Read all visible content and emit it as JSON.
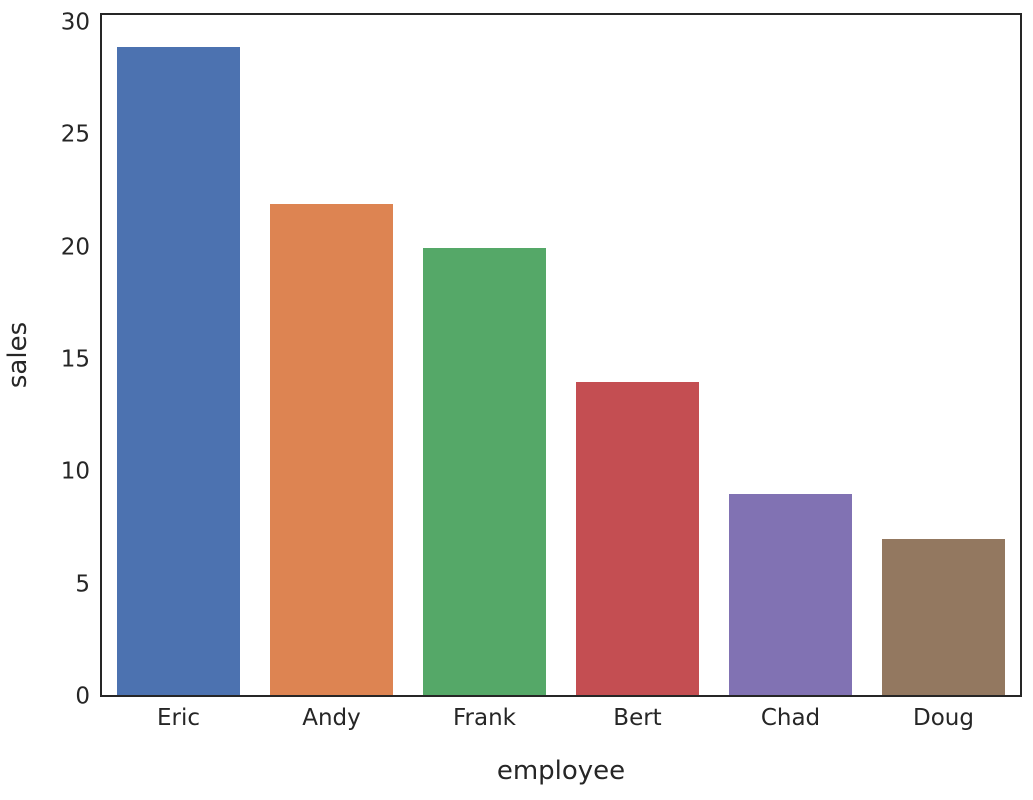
{
  "figure": {
    "background": "#ffffff",
    "text_color": "#262626",
    "spine_color": "#262626"
  },
  "chart_data": {
    "type": "bar",
    "title": "",
    "xlabel": "employee",
    "ylabel": "sales",
    "categories": [
      "Eric",
      "Andy",
      "Frank",
      "Bert",
      "Chad",
      "Doug"
    ],
    "values": [
      29,
      22,
      20,
      14,
      9,
      7
    ],
    "bar_colors": [
      "#4C72B0",
      "#DD8452",
      "#55A868",
      "#C44E52",
      "#8172B3",
      "#937860"
    ],
    "yticks": [
      0,
      5,
      10,
      15,
      20,
      25,
      30
    ],
    "ylim": [
      0,
      30.45
    ],
    "bar_width_fraction": 0.8,
    "grid": false,
    "legend": null
  }
}
